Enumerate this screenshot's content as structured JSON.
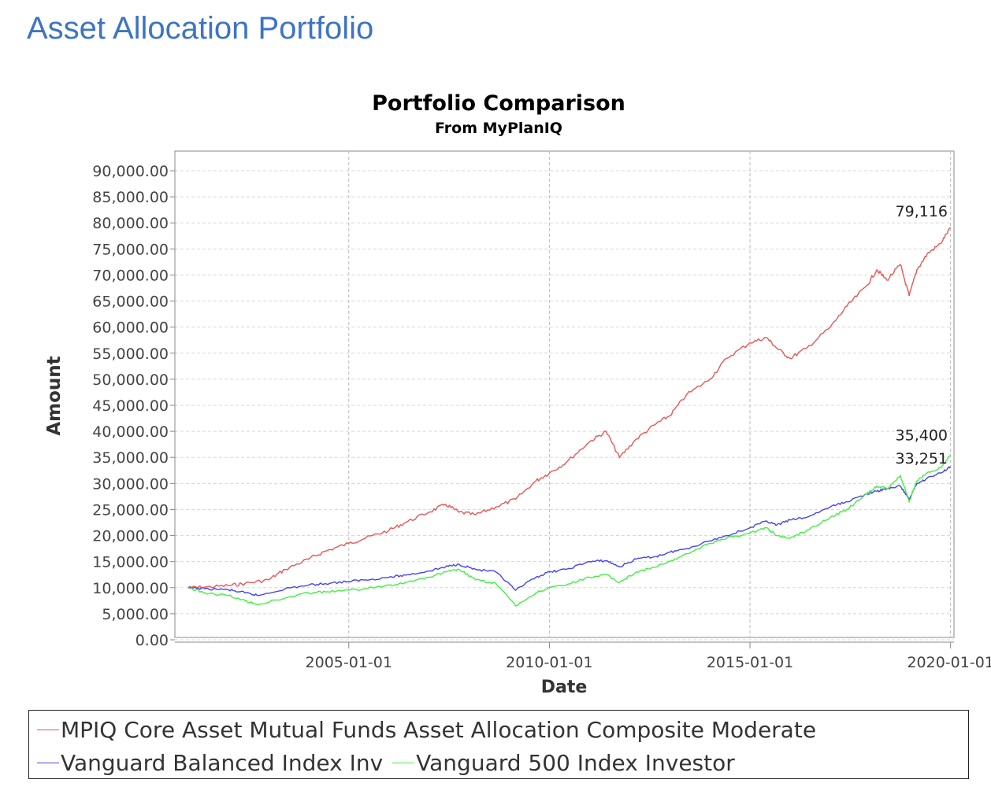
{
  "page": {
    "title": "Asset Allocation Portfolio"
  },
  "chart_data": {
    "type": "line",
    "title": "Portfolio Comparison",
    "subtitle": "From MyPlanIQ",
    "xlabel": "Date",
    "ylabel": "Amount",
    "ylim": [
      0,
      90000
    ],
    "xlim": [
      "2000-09-01",
      "2020-02-01"
    ],
    "grid": true,
    "legend_position": "bottom",
    "y_ticks": [
      "0.00",
      "5,000.00",
      "10,000.00",
      "15,000.00",
      "20,000.00",
      "25,000.00",
      "30,000.00",
      "35,000.00",
      "40,000.00",
      "45,000.00",
      "50,000.00",
      "55,000.00",
      "60,000.00",
      "65,000.00",
      "70,000.00",
      "75,000.00",
      "80,000.00",
      "85,000.00",
      "90,000.00"
    ],
    "x_ticks": [
      "2005-01-01",
      "2010-01-01",
      "2015-01-01",
      "2020-01-01"
    ],
    "end_labels": [
      "79,116",
      "35,400",
      "33,251"
    ],
    "series": [
      {
        "name": "MPIQ Core Asset Mutual Funds Asset Allocation Composite Moderate",
        "color": "#e85555",
        "x": [
          "2001-01-01",
          "2001-06-01",
          "2002-01-01",
          "2002-06-01",
          "2003-01-01",
          "2003-06-01",
          "2004-01-01",
          "2004-06-01",
          "2005-01-01",
          "2005-06-01",
          "2006-01-01",
          "2006-06-01",
          "2007-01-01",
          "2007-06-01",
          "2007-10-01",
          "2008-03-01",
          "2008-09-01",
          "2009-03-01",
          "2009-09-01",
          "2010-01-01",
          "2010-06-01",
          "2011-01-01",
          "2011-06-01",
          "2011-10-01",
          "2012-03-01",
          "2012-09-01",
          "2013-01-01",
          "2013-06-01",
          "2014-01-01",
          "2014-06-01",
          "2015-01-01",
          "2015-06-01",
          "2015-09-01",
          "2016-01-01",
          "2016-06-01",
          "2017-01-01",
          "2017-06-01",
          "2017-12-01",
          "2018-03-01",
          "2018-06-01",
          "2018-10-01",
          "2018-12-20",
          "2019-03-01",
          "2019-06-01",
          "2019-10-01",
          "2019-12-31"
        ],
        "values": [
          10000,
          10100,
          10400,
          10800,
          11500,
          13500,
          15500,
          17000,
          18500,
          19500,
          21000,
          22500,
          24500,
          26000,
          24500,
          24000,
          25500,
          27000,
          30500,
          32000,
          34000,
          38000,
          40000,
          35000,
          38500,
          41500,
          43000,
          47000,
          50000,
          54000,
          57000,
          58000,
          56000,
          54000,
          56000,
          60000,
          64000,
          68000,
          71000,
          69000,
          72000,
          66000,
          71000,
          74000,
          76000,
          79116
        ]
      },
      {
        "name": "Vanguard Balanced Index Inv",
        "color": "#4444ee",
        "x": [
          "2001-01-01",
          "2001-06-01",
          "2002-01-01",
          "2002-06-01",
          "2002-10-01",
          "2003-06-01",
          "2004-01-01",
          "2004-06-01",
          "2005-01-01",
          "2005-06-01",
          "2006-01-01",
          "2006-06-01",
          "2007-01-01",
          "2007-06-01",
          "2007-10-01",
          "2008-03-01",
          "2008-09-01",
          "2009-03-01",
          "2009-09-01",
          "2010-01-01",
          "2010-06-01",
          "2011-01-01",
          "2011-06-01",
          "2011-10-01",
          "2012-03-01",
          "2012-09-01",
          "2013-01-01",
          "2013-06-01",
          "2014-01-01",
          "2014-06-01",
          "2015-01-01",
          "2015-06-01",
          "2015-09-01",
          "2016-01-01",
          "2016-06-01",
          "2017-01-01",
          "2017-06-01",
          "2017-12-01",
          "2018-03-01",
          "2018-06-01",
          "2018-10-01",
          "2018-12-20",
          "2019-03-01",
          "2019-06-01",
          "2019-10-01",
          "2019-12-31"
        ],
        "values": [
          10000,
          9800,
          9600,
          9000,
          8500,
          9800,
          10500,
          10800,
          11200,
          11500,
          12000,
          12400,
          13200,
          14000,
          14500,
          13500,
          13000,
          9500,
          12000,
          13000,
          13500,
          15000,
          15200,
          14000,
          15500,
          16000,
          16800,
          17500,
          19000,
          20000,
          21500,
          22800,
          22000,
          23000,
          23500,
          25500,
          26500,
          28000,
          28500,
          29000,
          29500,
          27000,
          30000,
          31000,
          32000,
          33251
        ]
      },
      {
        "name": "Vanguard 500 Index Investor",
        "color": "#44ee44",
        "x": [
          "2001-01-01",
          "2001-06-01",
          "2002-01-01",
          "2002-06-01",
          "2002-10-01",
          "2003-06-01",
          "2004-01-01",
          "2004-06-01",
          "2005-01-01",
          "2005-06-01",
          "2006-01-01",
          "2006-06-01",
          "2007-01-01",
          "2007-06-01",
          "2007-10-01",
          "2008-03-01",
          "2008-09-01",
          "2009-03-01",
          "2009-09-01",
          "2010-01-01",
          "2010-06-01",
          "2011-01-01",
          "2011-06-01",
          "2011-10-01",
          "2012-03-01",
          "2012-09-01",
          "2013-01-01",
          "2013-06-01",
          "2014-01-01",
          "2014-06-01",
          "2015-01-01",
          "2015-06-01",
          "2015-09-01",
          "2016-01-01",
          "2016-06-01",
          "2017-01-01",
          "2017-06-01",
          "2017-12-01",
          "2018-03-01",
          "2018-06-01",
          "2018-10-01",
          "2018-12-20",
          "2019-03-01",
          "2019-06-01",
          "2019-10-01",
          "2019-12-31"
        ],
        "values": [
          10000,
          9000,
          8500,
          7500,
          6800,
          8000,
          9000,
          9200,
          9500,
          9800,
          10500,
          11000,
          12000,
          13000,
          13500,
          11500,
          10800,
          6500,
          9000,
          10000,
          10500,
          12000,
          12500,
          11000,
          13000,
          14000,
          15000,
          16500,
          18500,
          19500,
          20500,
          21500,
          20000,
          19500,
          21000,
          23500,
          25000,
          28000,
          29500,
          29000,
          31500,
          26500,
          30500,
          32000,
          33000,
          35400
        ]
      }
    ]
  }
}
